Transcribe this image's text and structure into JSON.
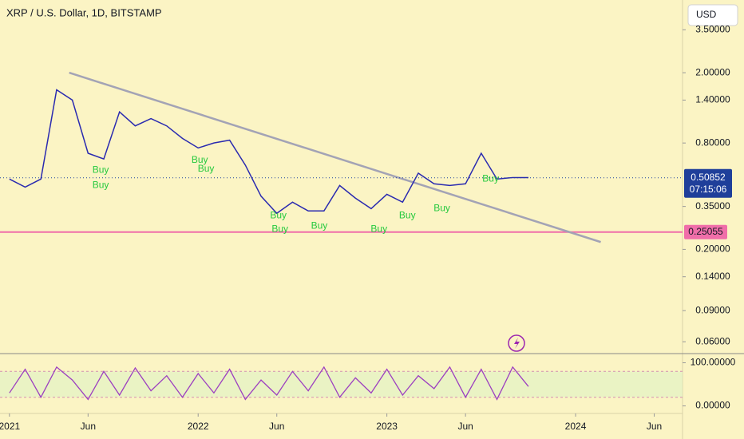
{
  "chart_data": {
    "type": "line",
    "title": "XRP / U.S. Dollar, 1D, BITSTAMP",
    "currency": "USD",
    "log_scale": true,
    "x": [
      0,
      1,
      2,
      3,
      4,
      5,
      6,
      7,
      8,
      9,
      10,
      11,
      12,
      13,
      14,
      15,
      16,
      17,
      18,
      19,
      20,
      21,
      22,
      23,
      24,
      25,
      26,
      27,
      28,
      29,
      30,
      31,
      32,
      33
    ],
    "xlim": [
      -0.6,
      42.8
    ],
    "xticks": [
      {
        "value": 0,
        "label": "2021"
      },
      {
        "value": 5,
        "label": "Jun"
      },
      {
        "value": 12,
        "label": "2022"
      },
      {
        "value": 17,
        "label": "Jun"
      },
      {
        "value": 24,
        "label": "2023"
      },
      {
        "value": 29,
        "label": "Jun"
      },
      {
        "value": 36,
        "label": "2024"
      },
      {
        "value": 41,
        "label": "Jun"
      }
    ],
    "ylim": [
      0.0514,
      5.16
    ],
    "yticks": [
      {
        "value": 3.5,
        "label": "3.50000"
      },
      {
        "value": 2,
        "label": "2.00000"
      },
      {
        "value": 1.4,
        "label": "1.40000"
      },
      {
        "value": 0.8,
        "label": "0.80000"
      },
      {
        "value": 0.35,
        "label": "0.35000"
      },
      {
        "value": 0.2,
        "label": "0.20000"
      },
      {
        "value": 0.14,
        "label": "0.14000"
      },
      {
        "value": 0.09,
        "label": "0.09000"
      },
      {
        "value": 0.06,
        "label": "0.06000"
      }
    ],
    "series": [
      {
        "name": "XRPUSD",
        "color": "#2a2ab0",
        "values": [
          0.5,
          0.45,
          0.5,
          1.6,
          1.4,
          0.7,
          0.65,
          1.2,
          1.0,
          1.1,
          1.0,
          0.85,
          0.75,
          0.8,
          0.83,
          0.6,
          0.4,
          0.32,
          0.37,
          0.33,
          0.33,
          0.46,
          0.39,
          0.34,
          0.41,
          0.37,
          0.54,
          0.47,
          0.46,
          0.47,
          0.7,
          0.5,
          0.51,
          0.51
        ]
      }
    ],
    "last_price": {
      "value": 0.50852,
      "label": "0.50852"
    },
    "countdown": "07:15:06",
    "level": {
      "value": 0.25055,
      "label": "0.25055",
      "color": "#f06ea9"
    },
    "trendline": {
      "x": [
        3.8,
        37.6
      ],
      "values": [
        2.0,
        0.22
      ],
      "color": "#a3a3b5"
    },
    "annotations": [
      {
        "text": "Buy",
        "x": 5.8,
        "y": 0.56
      },
      {
        "text": "Buy",
        "x": 5.8,
        "y": 0.46
      },
      {
        "text": "Buy",
        "x": 12.1,
        "y": 0.64
      },
      {
        "text": "Buy",
        "x": 12.5,
        "y": 0.57
      },
      {
        "text": "Buy",
        "x": 17.1,
        "y": 0.31
      },
      {
        "text": "Buy",
        "x": 17.2,
        "y": 0.26
      },
      {
        "text": "Buy",
        "x": 19.7,
        "y": 0.27
      },
      {
        "text": "Buy",
        "x": 23.5,
        "y": 0.26
      },
      {
        "text": "Buy",
        "x": 25.3,
        "y": 0.31
      },
      {
        "text": "Buy",
        "x": 27.5,
        "y": 0.34
      },
      {
        "text": "Buy",
        "x": 30.6,
        "y": 0.5
      }
    ],
    "oscillator": {
      "color": "#9c3fc0",
      "ylim": [
        -12,
        112
      ],
      "yticks": [
        {
          "value": 100,
          "label": "100.00000"
        },
        {
          "value": 0,
          "label": "0.00000"
        }
      ],
      "bands": [
        80,
        20
      ],
      "values": [
        30,
        85,
        20,
        90,
        60,
        15,
        80,
        25,
        88,
        35,
        70,
        20,
        75,
        30,
        85,
        15,
        60,
        25,
        80,
        35,
        90,
        20,
        65,
        30,
        85,
        25,
        70,
        40,
        90,
        20,
        85,
        15,
        90,
        45
      ]
    }
  }
}
